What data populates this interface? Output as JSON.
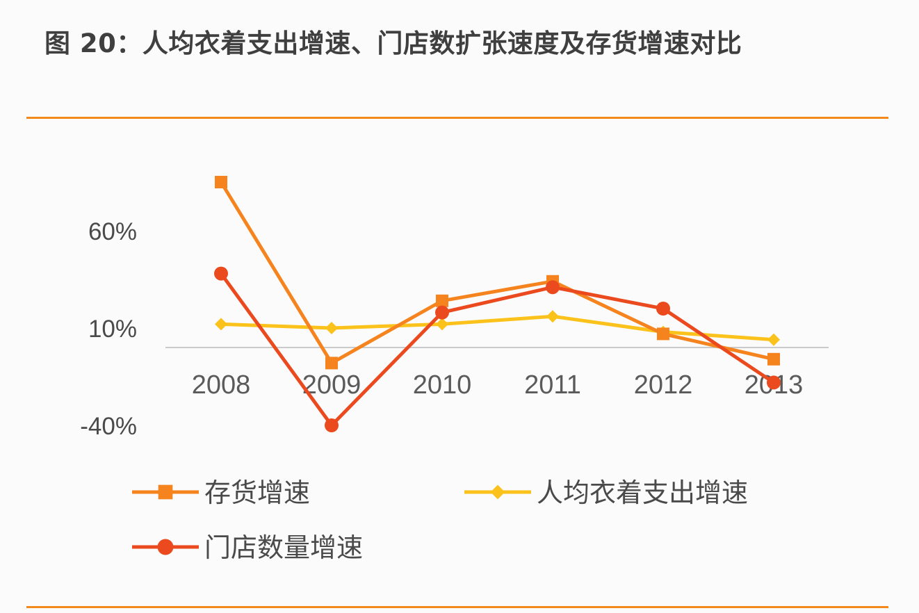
{
  "title": "图 20：人均衣着支出增速、门店数扩张速度及存货增速对比",
  "chart_data": {
    "type": "line",
    "categories": [
      "2008",
      "2009",
      "2010",
      "2011",
      "2012",
      "2013"
    ],
    "ylim": [
      -40,
      60
    ],
    "y_ticks": [
      {
        "value": 60,
        "label": "60%"
      },
      {
        "value": 10,
        "label": "10%"
      },
      {
        "value": -40,
        "label": "-40%"
      }
    ],
    "grid": false,
    "baseline": 0,
    "legend_position": "bottom",
    "series": [
      {
        "name": "存货增速",
        "color": "#f5841f",
        "marker": "square",
        "values": [
          85,
          -8,
          24,
          34,
          7,
          -6
        ]
      },
      {
        "name": "人均衣着支出增速",
        "color": "#fbc21b",
        "marker": "diamond",
        "values": [
          12,
          10,
          12,
          16,
          8,
          4
        ]
      },
      {
        "name": "门店数量增速",
        "color": "#ea4a1e",
        "marker": "circle",
        "values": [
          38,
          -40,
          18,
          31,
          20,
          -18
        ]
      }
    ]
  }
}
